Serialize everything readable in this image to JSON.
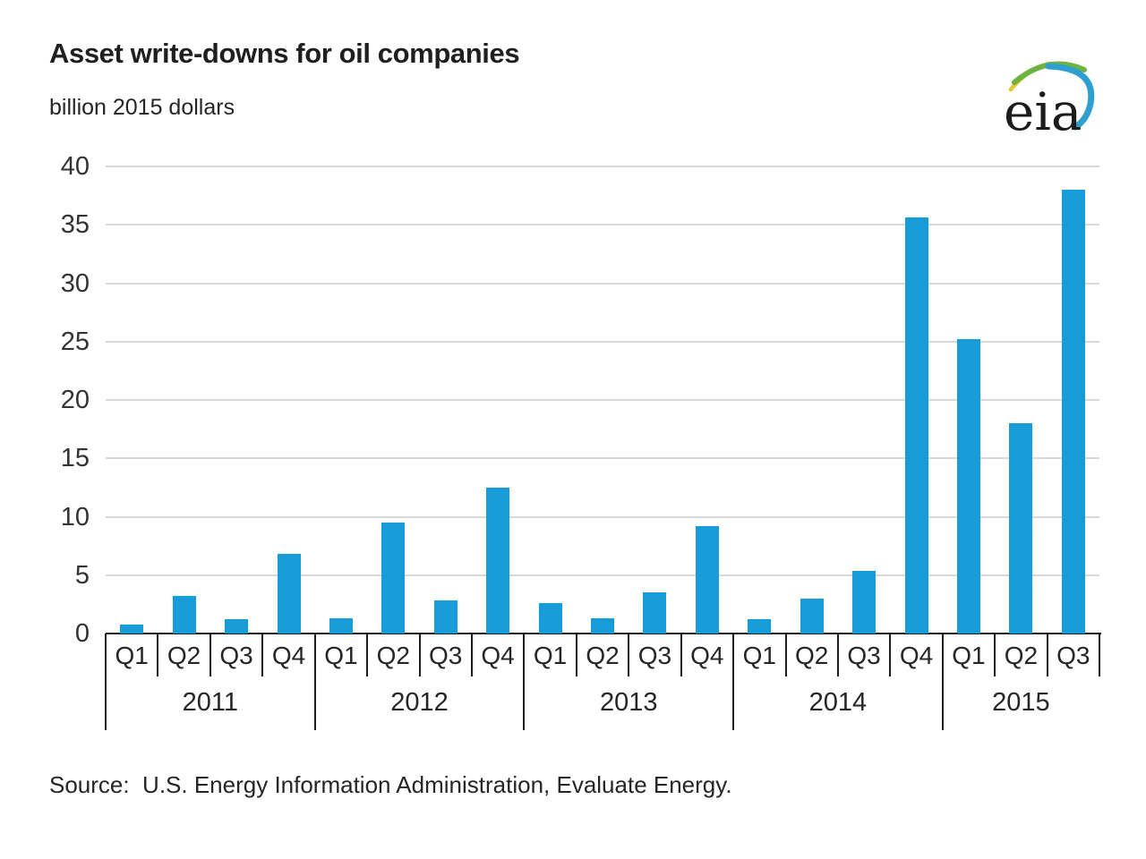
{
  "header": {
    "title": "Asset write-downs for oil companies",
    "subtitle": "billion 2015 dollars",
    "logo_text": "eia"
  },
  "source_note": "Source:  U.S. Energy Information Administration, Evaluate Energy.",
  "colors": {
    "bar": "#189cd8",
    "gridline": "#d9d9d9",
    "axis": "#1c1c1c",
    "text": "#262626",
    "logo_green": "#6cb33f",
    "logo_yellow": "#e3c832",
    "logo_blue": "#2f9fd0"
  },
  "chart_data": {
    "type": "bar",
    "title": "Asset write-downs for oil companies",
    "ylabel": "billion 2015 dollars",
    "xlabel": "",
    "ylim": [
      0,
      40
    ],
    "yticks": [
      0,
      5,
      10,
      15,
      20,
      25,
      30,
      35,
      40
    ],
    "grid": "horizontal",
    "legend": "none",
    "bar_color": "#189cd8",
    "groups": [
      {
        "year": "2011",
        "quarters": [
          "Q1",
          "Q2",
          "Q3",
          "Q4"
        ],
        "values": [
          0.8,
          3.2,
          1.2,
          6.8
        ]
      },
      {
        "year": "2012",
        "quarters": [
          "Q1",
          "Q2",
          "Q3",
          "Q4"
        ],
        "values": [
          1.3,
          9.5,
          2.8,
          12.5
        ]
      },
      {
        "year": "2013",
        "quarters": [
          "Q1",
          "Q2",
          "Q3",
          "Q4"
        ],
        "values": [
          2.6,
          1.3,
          3.5,
          9.2
        ]
      },
      {
        "year": "2014",
        "quarters": [
          "Q1",
          "Q2",
          "Q3",
          "Q4"
        ],
        "values": [
          1.2,
          3.0,
          5.4,
          35.6
        ]
      },
      {
        "year": "2015",
        "quarters": [
          "Q1",
          "Q2",
          "Q3"
        ],
        "values": [
          25.2,
          18.0,
          38.0
        ]
      }
    ]
  }
}
